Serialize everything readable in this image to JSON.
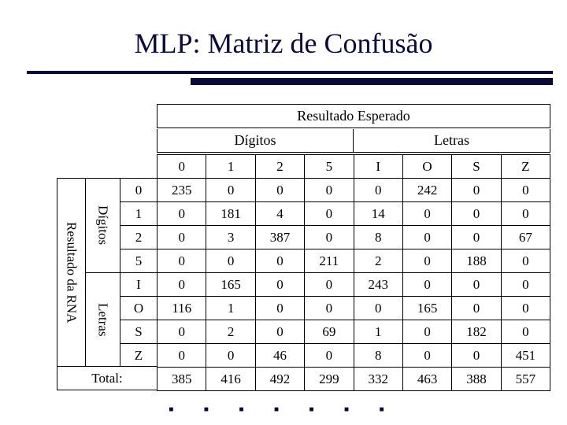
{
  "title": "MLP: Matriz de Confusão",
  "expected": {
    "overall_label": "Resultado Esperado",
    "group_digits_label": "Dígitos",
    "group_letters_label": "Letras",
    "columns": [
      "0",
      "1",
      "2",
      "5",
      "I",
      "O",
      "S",
      "Z"
    ]
  },
  "left": {
    "rna_label": "Resultado da RNA",
    "group_digits_label": "Dígitos",
    "group_letters_label": "Letras",
    "rows": [
      "0",
      "1",
      "2",
      "5",
      "I",
      "O",
      "S",
      "Z"
    ],
    "total_label": "Total:"
  },
  "matrix": {
    "type": "table",
    "rows": [
      [
        235,
        0,
        0,
        0,
        0,
        242,
        0,
        0
      ],
      [
        0,
        181,
        4,
        0,
        14,
        0,
        0,
        0
      ],
      [
        0,
        3,
        387,
        0,
        8,
        0,
        0,
        67
      ],
      [
        0,
        0,
        0,
        211,
        2,
        0,
        188,
        0
      ],
      [
        0,
        165,
        0,
        0,
        243,
        0,
        0,
        0
      ],
      [
        116,
        1,
        0,
        0,
        0,
        165,
        0,
        0
      ],
      [
        0,
        2,
        0,
        69,
        1,
        0,
        182,
        0
      ],
      [
        0,
        0,
        46,
        0,
        8,
        0,
        0,
        451
      ]
    ],
    "totals": [
      385,
      416,
      492,
      299,
      332,
      463,
      388,
      557
    ]
  },
  "style": {
    "title_color": "#0b0b40",
    "rule_color": "#0a0a3a",
    "border_color": "#000000",
    "background": "#ffffff",
    "title_fontsize": 36,
    "cell_fontsize": 17,
    "header_fontsize": 18
  }
}
